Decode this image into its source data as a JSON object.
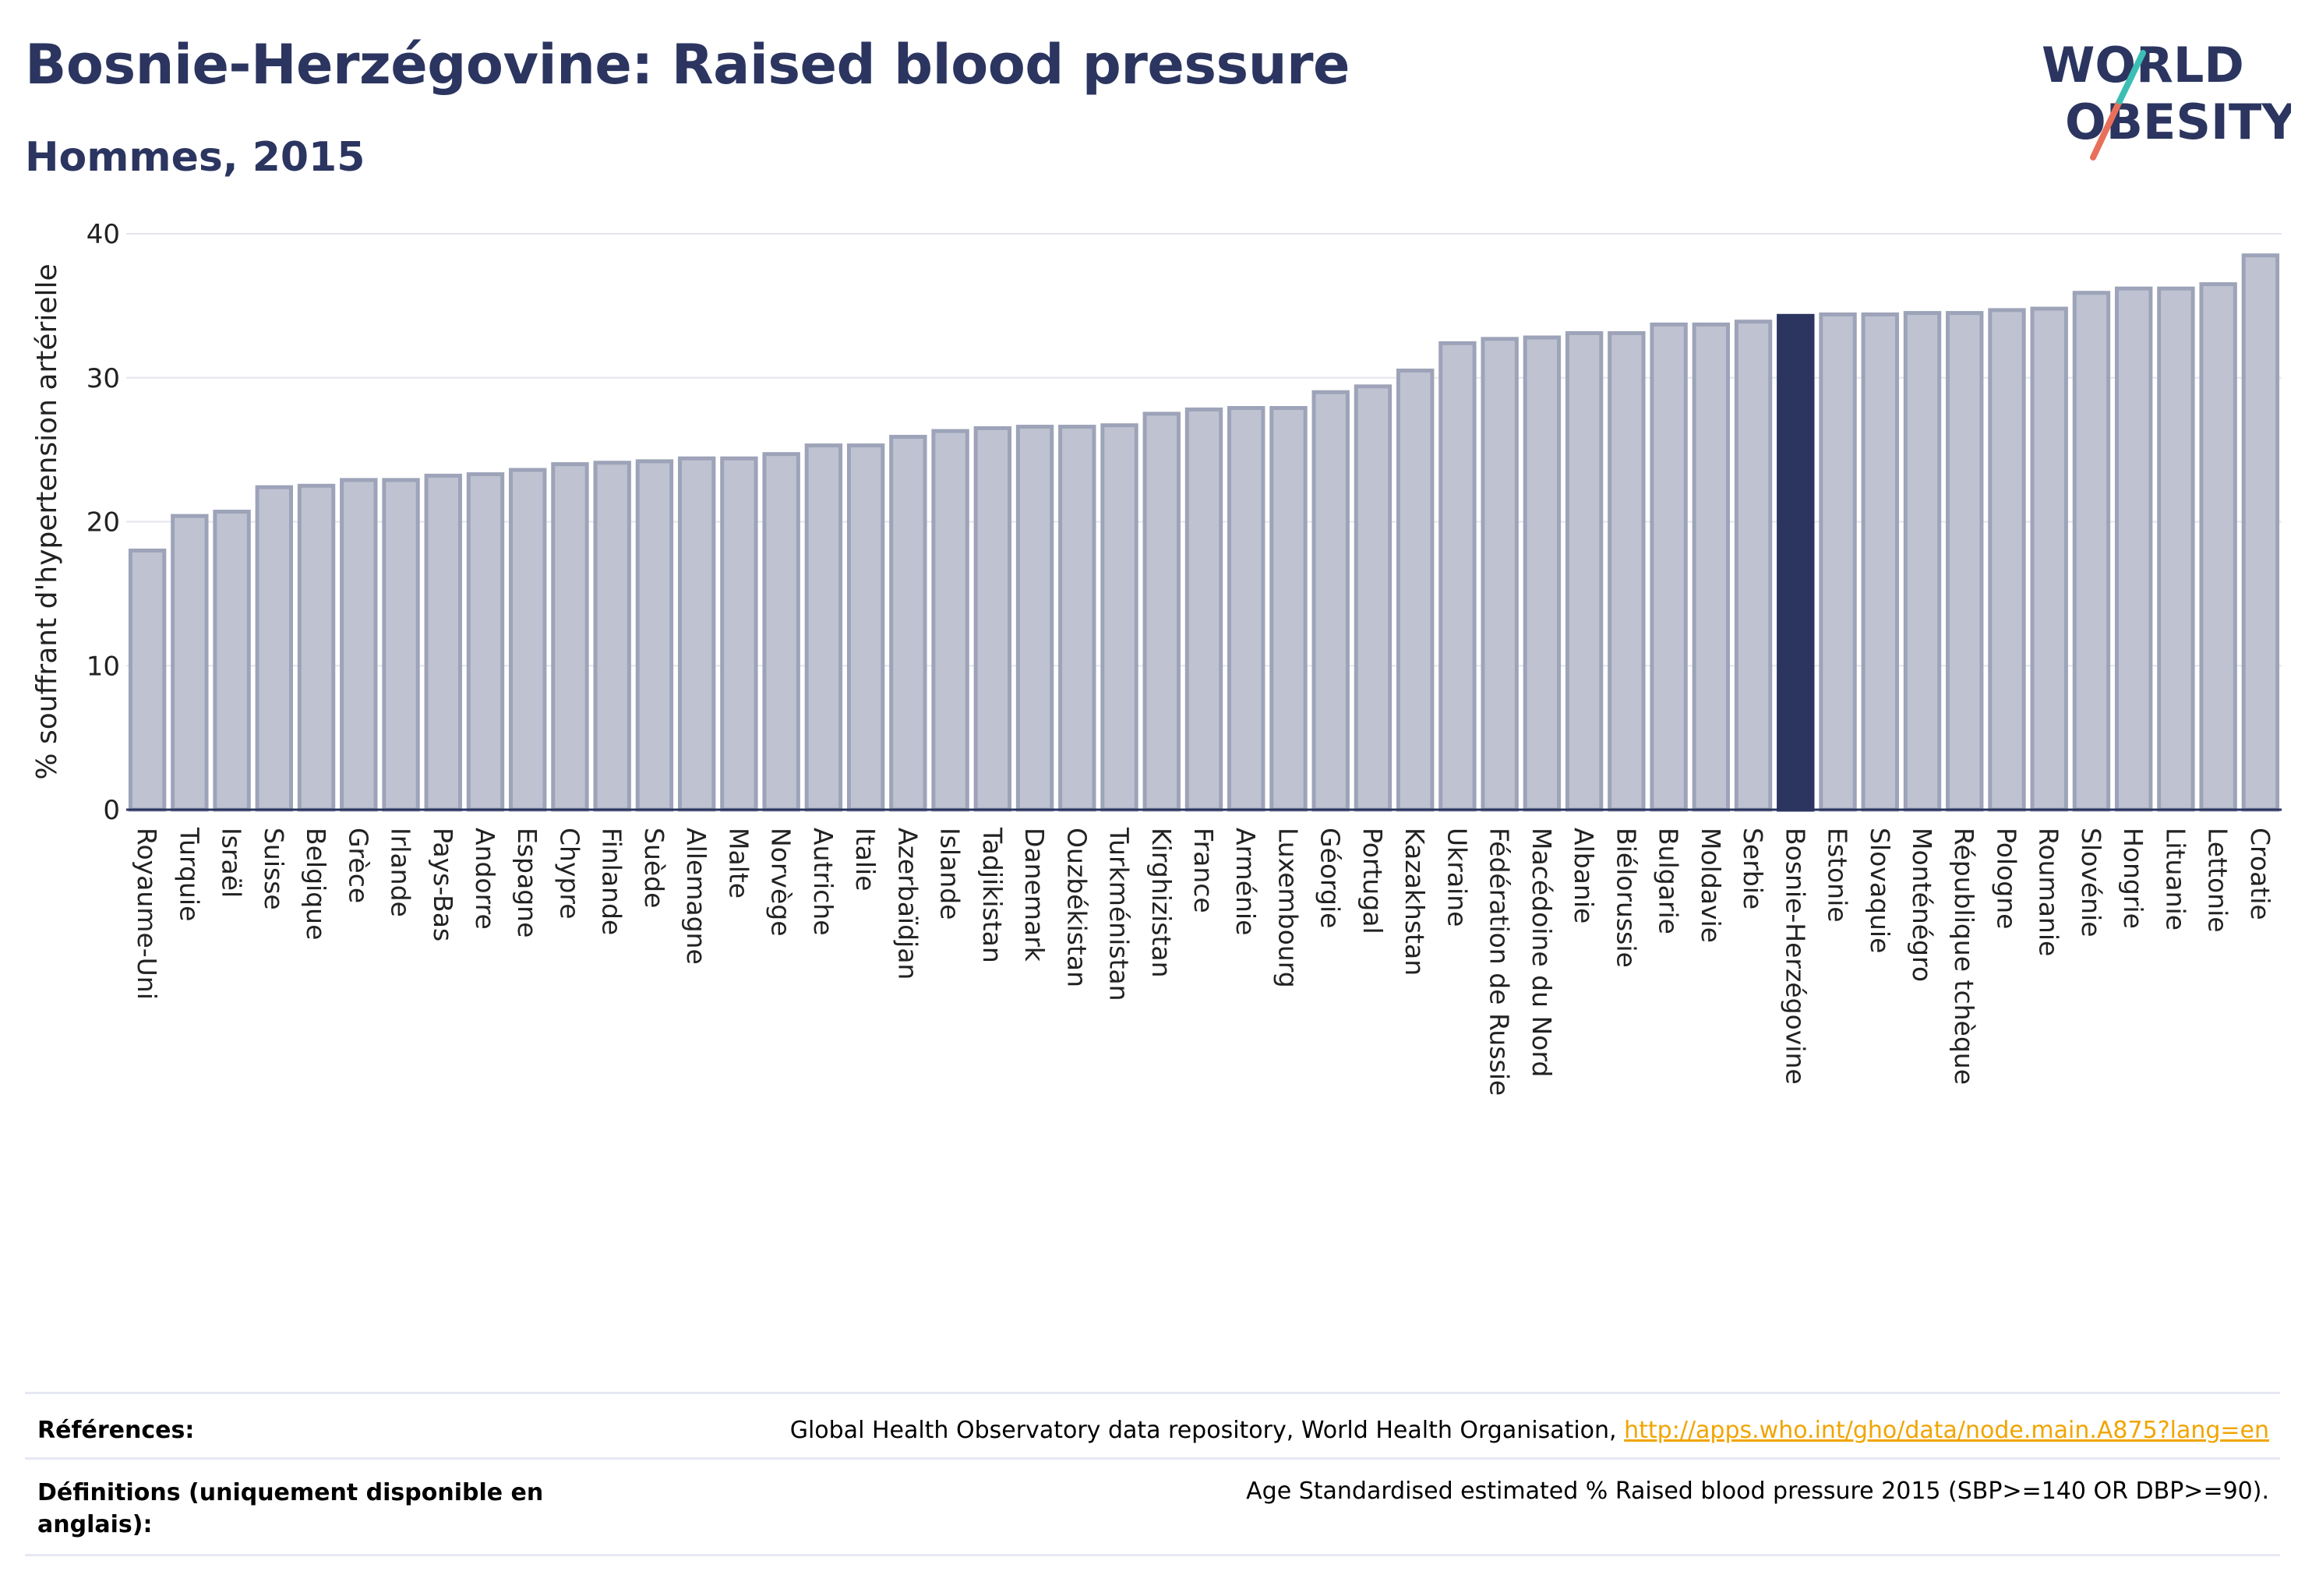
{
  "header": {
    "title": "Bosnie-Herzégovine: Raised blood pressure",
    "subtitle": "Hommes, 2015"
  },
  "logo": {
    "line1": "WORLD",
    "line2": "OBESITY"
  },
  "colors": {
    "bar": "#bfc3d1",
    "bar_stroke": "#9da3b8",
    "highlight": "#2b3560",
    "grid": "#e4e6ee",
    "axis": "#2b3560"
  },
  "chart_data": {
    "type": "bar",
    "ylabel": "% souffrant d'hypertension artérielle",
    "ylim": [
      0,
      40
    ],
    "yticks": [
      0,
      10,
      20,
      30,
      40
    ],
    "grid": true,
    "highlight": "Bosnie-Herzégovine",
    "categories": [
      "Royaume-Uni",
      "Turquie",
      "Israël",
      "Suisse",
      "Belgique",
      "Grèce",
      "Irlande",
      "Pays-Bas",
      "Andorre",
      "Espagne",
      "Chypre",
      "Finlande",
      "Suède",
      "Allemagne",
      "Malte",
      "Norvège",
      "Autriche",
      "Italie",
      "Azerbaïdjan",
      "Islande",
      "Tadjikistan",
      "Danemark",
      "Ouzbékistan",
      "Turkménistan",
      "Kirghizistan",
      "France",
      "Arménie",
      "Luxembourg",
      "Géorgie",
      "Portugal",
      "Kazakhstan",
      "Ukraine",
      "Fédération de Russie",
      "Macédoine du Nord",
      "Albanie",
      "Biélorussie",
      "Bulgarie",
      "Moldavie",
      "Serbie",
      "Bosnie-Herzégovine",
      "Estonie",
      "Slovaquie",
      "Monténégro",
      "République tchèque",
      "Pologne",
      "Roumanie",
      "Slovénie",
      "Hongrie",
      "Lituanie",
      "Lettonie",
      "Croatie"
    ],
    "values": [
      18.0,
      20.4,
      20.7,
      22.4,
      22.5,
      22.9,
      22.9,
      23.2,
      23.3,
      23.6,
      24.0,
      24.1,
      24.2,
      24.4,
      24.4,
      24.7,
      25.3,
      25.3,
      25.9,
      26.3,
      26.5,
      26.6,
      26.6,
      26.7,
      27.5,
      27.8,
      27.9,
      27.9,
      29.0,
      29.4,
      30.5,
      32.4,
      32.7,
      32.8,
      33.1,
      33.1,
      33.7,
      33.7,
      33.9,
      34.3,
      34.4,
      34.4,
      34.5,
      34.5,
      34.7,
      34.8,
      35.9,
      36.2,
      36.2,
      36.5,
      38.5
    ]
  },
  "footer": {
    "references_label": "Références:",
    "references_text": "Global Health Observatory data repository, World Health Organisation,",
    "references_link": "http://apps.who.int/gho/data/node.main.A875?lang=en",
    "definitions_label": "Définitions (uniquement disponible en anglais):",
    "definitions_text": "Age Standardised estimated % Raised blood pressure 2015 (SBP>=140 OR DBP>=90)."
  }
}
